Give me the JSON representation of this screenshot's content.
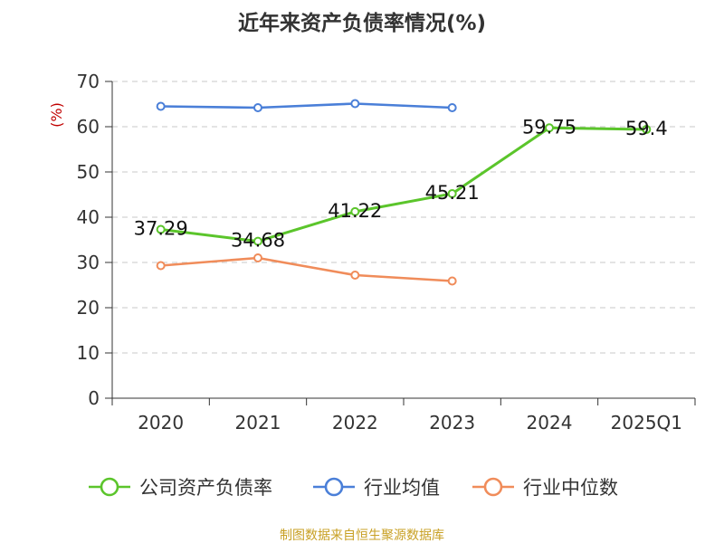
{
  "chart_data": {
    "type": "line",
    "title": "近年来资产负债率情况(%)",
    "ylabel": "(%)",
    "xlabel": "",
    "categories": [
      "2020",
      "2021",
      "2022",
      "2023",
      "2024",
      "2025Q1"
    ],
    "ylim": [
      0,
      70
    ],
    "yticks": [
      "0",
      "10",
      "20",
      "30",
      "40",
      "50",
      "60",
      "70"
    ],
    "grid": true,
    "legend_position": "bottom",
    "series": [
      {
        "name": "公司资产负债率",
        "color": "#5bc52b",
        "values": [
          37.29,
          34.68,
          41.22,
          45.21,
          59.75,
          59.4
        ],
        "labels": [
          "37.29",
          "34.68",
          "41.22",
          "45.21",
          "59.75",
          "59.4"
        ]
      },
      {
        "name": "行业均值",
        "color": "#4a7fd8",
        "values": [
          64.5,
          64.2,
          65.1,
          64.2,
          null,
          null
        ]
      },
      {
        "name": "行业中位数",
        "color": "#f08c5a",
        "values": [
          29.3,
          31.0,
          27.2,
          25.9,
          null,
          null
        ]
      }
    ],
    "source": "制图数据来自恒生聚源数据库"
  }
}
